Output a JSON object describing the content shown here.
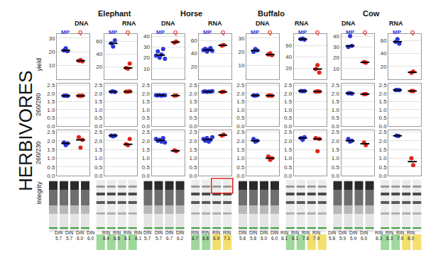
{
  "title": "HERBIVORES",
  "chart_data": {
    "type": "scatter",
    "marker": "circle",
    "grid": true,
    "tick_labels": "y",
    "series": [
      {
        "name": "MP",
        "color": "#2b35d8"
      },
      {
        "name": "Q",
        "color": "#e3241b"
      }
    ],
    "row_labels": [
      "yield",
      "260/280",
      "260/230",
      "Integrity"
    ],
    "animals": [
      {
        "name": "Elephant",
        "panels": [
          {
            "sample": "DNA",
            "rows": [
              {
                "ylim": [
                  0,
                  33
                ],
                "yticks": [
                  10,
                  20,
                  30
                ],
                "MP": [
                  21,
                  22.5,
                  20.5
                ],
                "Q": [
                  13.5,
                  14,
                  13
                ]
              },
              {
                "ylim": [
                  0,
                  2.6
                ],
                "yticks": [
                  {
                    "value": 0,
                    "label": "0.0"
                  },
                  0.5,
                  {
                    "value": 1,
                    "label": "1.0"
                  },
                  1.5,
                  {
                    "value": 2,
                    "label": "2.0"
                  },
                  2.5
                ],
                "MP": [
                  1.85,
                  1.86,
                  1.84
                ],
                "Q": [
                  1.85,
                  1.84,
                  1.86
                ]
              },
              {
                "ylim": [
                  0,
                  2.6
                ],
                "yticks": [
                  {
                    "value": 0,
                    "label": "0.0"
                  },
                  0.5,
                  {
                    "value": 1,
                    "label": "1.0"
                  },
                  1.5,
                  {
                    "value": 2,
                    "label": "2.0"
                  },
                  2.5
                ],
                "MP": [
                  1.9,
                  1.75,
                  1.85
                ],
                "Q": [
                  2.2,
                  1.6,
                  2.05
                ]
              }
            ],
            "integrity": {
              "metric": "DIN",
              "labels": [
                "5.7",
                "5.7",
                "6.0",
                "6.0"
              ]
            }
          },
          {
            "sample": "RNA",
            "rows": [
              {
                "ylim": [
                  0,
                  72
                ],
                "yticks": [
                  20,
                  40,
                  60
                ],
                "MP": [
                  57,
                  52,
                  62
                ],
                "Q": [
                  18,
                  17,
                  25
                ]
              },
              {
                "ylim": [
                  0,
                  2.6
                ],
                "yticks": [
                  {
                    "value": 0,
                    "label": "0.0"
                  },
                  0.5,
                  {
                    "value": 1,
                    "label": "1.0"
                  },
                  1.5,
                  {
                    "value": 2,
                    "label": "2.0"
                  },
                  2.5
                ],
                "MP": [
                  2.1,
                  2.12,
                  2.08
                ],
                "Q": [
                  2.1,
                  2.1,
                  2.12
                ]
              },
              {
                "ylim": [
                  0,
                  2.6
                ],
                "yticks": [
                  {
                    "value": 0,
                    "label": "0.0"
                  },
                  0.5,
                  {
                    "value": 1,
                    "label": "1.0"
                  },
                  1.5,
                  {
                    "value": 2,
                    "label": "2.0"
                  },
                  2.5
                ],
                "MP": [
                  2.3,
                  2.25,
                  2.3
                ],
                "Q": [
                  1.8,
                  1.75,
                  2.1
                ]
              }
            ],
            "integrity": {
              "metric": "RIN",
              "labels": [
                "8.4",
                "8.6",
                "8.1",
                "8.1"
              ],
              "colors": [
                "#9ed89a",
                "#9ed89a",
                "#9ed89a",
                "#9ed89a"
              ]
            }
          }
        ]
      },
      {
        "name": "Horse",
        "panels": [
          {
            "sample": "DNA",
            "rows": [
              {
                "ylim": [
                  0,
                  42
                ],
                "yticks": [
                  10,
                  20,
                  30,
                  40
                ],
                "MP": [
                  22,
                  26,
                  20,
                  23,
                  28,
                  19
                ],
                "Q": [
                  34,
                  35
                ]
              },
              {
                "ylim": [
                  0,
                  2.6
                ],
                "yticks": [
                  {
                    "value": 0,
                    "label": "0.0"
                  },
                  0.5,
                  {
                    "value": 1,
                    "label": "1.0"
                  },
                  1.5,
                  {
                    "value": 2,
                    "label": "2.0"
                  },
                  2.5
                ],
                "MP": [
                  1.88,
                  1.87,
                  1.9,
                  1.86,
                  1.88,
                  1.89
                ],
                "Q": [
                  1.86,
                  1.87
                ]
              },
              {
                "ylim": [
                  0,
                  2.6
                ],
                "yticks": [
                  {
                    "value": 0,
                    "label": "0.0"
                  },
                  0.5,
                  {
                    "value": 1,
                    "label": "1.0"
                  },
                  1.5,
                  {
                    "value": 2,
                    "label": "2.0"
                  },
                  2.5
                ],
                "MP": [
                  2.1,
                  2.0,
                  2.05,
                  1.95,
                  2.15,
                  1.9
                ],
                "Q": [
                  1.45,
                  1.4
                ]
              }
            ],
            "integrity": {
              "metric": "DIN",
              "labels": [
                "5.7",
                "5.7",
                "6.7",
                "6.2"
              ]
            }
          },
          {
            "sample": "RNA",
            "rows": [
              {
                "ylim": [
                  0,
                  70
                ],
                "yticks": [
                  20,
                  40,
                  60
                ],
                "MP": [
                  45,
                  47,
                  43,
                  46,
                  48,
                  44
                ],
                "Q": [
                  52,
                  53
                ]
              },
              {
                "ylim": [
                  0,
                  2.6
                ],
                "yticks": [
                  {
                    "value": 0,
                    "label": "0.0"
                  },
                  0.5,
                  {
                    "value": 1,
                    "label": "1.0"
                  },
                  1.5,
                  {
                    "value": 2,
                    "label": "2.0"
                  },
                  2.5
                ],
                "MP": [
                  2.1,
                  2.12,
                  2.09,
                  2.11,
                  2.1,
                  2.13
                ],
                "Q": [
                  2.08,
                  2.1
                ]
              },
              {
                "ylim": [
                  0,
                  2.6
                ],
                "yticks": [
                  {
                    "value": 0,
                    "label": "0.0"
                  },
                  0.5,
                  {
                    "value": 1,
                    "label": "1.0"
                  },
                  1.5,
                  {
                    "value": 2,
                    "label": "2.0"
                  },
                  2.5
                ],
                "MP": [
                  2.1,
                  2.0,
                  2.15,
                  1.95,
                  2.05,
                  2.2
                ],
                "Q": [
                  2.3,
                  2.35
                ]
              }
            ],
            "integrity": {
              "metric": "RIN",
              "labels": [
                "8.7",
                "8.8",
                "6.9",
                "7.1"
              ],
              "colors": [
                "#9ed89a",
                "#9ed89a",
                "#f3df6e",
                "#f3df6e"
              ],
              "highlight": "Q"
            }
          }
        ]
      },
      {
        "name": "Buffalo",
        "panels": [
          {
            "sample": "DNA",
            "rows": [
              {
                "ylim": [
                  0,
                  33
                ],
                "yticks": [
                  10,
                  20,
                  30
                ],
                "MP": [
                  20,
                  22,
                  21
                ],
                "Q": [
                  18,
                  19,
                  17.5
                ]
              },
              {
                "ylim": [
                  0,
                  2.6
                ],
                "yticks": [
                  {
                    "value": 0,
                    "label": "0.0"
                  },
                  0.5,
                  {
                    "value": 1,
                    "label": "1.0"
                  },
                  1.5,
                  {
                    "value": 2,
                    "label": "2.0"
                  },
                  2.5
                ],
                "MP": [
                  1.87,
                  1.86,
                  1.88
                ],
                "Q": [
                  1.86,
                  1.87,
                  1.85
                ]
              },
              {
                "ylim": [
                  0,
                  2.6
                ],
                "yticks": [
                  {
                    "value": 0,
                    "label": "0.0"
                  },
                  0.5,
                  {
                    "value": 1,
                    "label": "1.0"
                  },
                  1.5,
                  {
                    "value": 2,
                    "label": "2.0"
                  },
                  2.5
                ],
                "MP": [
                  2.1,
                  1.95,
                  2.0
                ],
                "Q": [
                  1.1,
                  0.9,
                  1.0
                ]
              }
            ],
            "integrity": {
              "metric": "DIN",
              "labels": [
                "5.8",
                "5.8",
                "6.0",
                "6.0"
              ]
            }
          },
          {
            "sample": "RNA",
            "rows": [
              {
                "ylim": [
                  0,
                  80
                ],
                "yticks": [
                  20,
                  40,
                  60
                ],
                "MP": [
                  71,
                  72,
                  70
                ],
                "Q": [
                  18,
                  25,
                  12
                ]
              },
              {
                "ylim": [
                  0,
                  2.6
                ],
                "yticks": [
                  {
                    "value": 0,
                    "label": "0.0"
                  },
                  0.5,
                  {
                    "value": 1,
                    "label": "1.0"
                  },
                  1.5,
                  {
                    "value": 2,
                    "label": "2.0"
                  },
                  2.5
                ],
                "MP": [
                  2.15,
                  2.13,
                  2.14
                ],
                "Q": [
                  2.1,
                  2.12,
                  2.11
                ]
              },
              {
                "ylim": [
                  0,
                  2.6
                ],
                "yticks": [
                  {
                    "value": 0,
                    "label": "0.0"
                  },
                  0.5,
                  {
                    "value": 1,
                    "label": "1.0"
                  },
                  1.5,
                  {
                    "value": 2,
                    "label": "2.0"
                  },
                  2.5
                ],
                "MP": [
                  2.15,
                  2.05,
                  2.2
                ],
                "Q": [
                  2.15,
                  1.4,
                  2.1
                ]
              }
            ],
            "integrity": {
              "metric": "RIN",
              "labels": [
                "8.1",
                "8.1",
                "7.8",
                "7.9"
              ],
              "colors": [
                "#9ed89a",
                "#9ed89a",
                "#f3df6e",
                "#f3df6e"
              ]
            }
          }
        ]
      },
      {
        "name": "Cow",
        "panels": [
          {
            "sample": "DNA",
            "rows": [
              {
                "ylim": [
                  0,
                  42
                ],
                "yticks": [
                  10,
                  20,
                  30,
                  40
                ],
                "MP": [
                  30,
                  40,
                  31
                ],
                "Q": [
                  16,
                  15.5
                ]
              },
              {
                "ylim": [
                  0,
                  2.6
                ],
                "yticks": [
                  {
                    "value": 0,
                    "label": "0.0"
                  },
                  0.5,
                  {
                    "value": 1,
                    "label": "1.0"
                  },
                  1.5,
                  {
                    "value": 2,
                    "label": "2.0"
                  },
                  2.5
                ],
                "MP": [
                  2.0,
                  2.02,
                  1.98
                ],
                "Q": [
                  1.95,
                  1.96
                ]
              },
              {
                "ylim": [
                  0,
                  2.6
                ],
                "yticks": [
                  {
                    "value": 0,
                    "label": "0.0"
                  },
                  0.5,
                  {
                    "value": 1,
                    "label": "1.0"
                  },
                  1.5,
                  {
                    "value": 2,
                    "label": "2.0"
                  },
                  2.5
                ],
                "MP": [
                  2.1,
                  1.95,
                  2.0
                ],
                "Q": [
                  1.9,
                  1.75
                ]
              }
            ],
            "integrity": {
              "metric": "DIN",
              "labels": [
                "5.8",
                "5.9",
                "5.9",
                "6.0"
              ]
            }
          },
          {
            "sample": "RNA",
            "rows": [
              {
                "ylim": [
                  0,
                  70
                ],
                "yticks": [
                  20,
                  40,
                  60
                ],
                "MP": [
                  58,
                  62,
                  55
                ],
                "Q": [
                  10,
                  12
                ]
              },
              {
                "ylim": [
                  0,
                  2.6
                ],
                "yticks": [
                  {
                    "value": 0,
                    "label": "0.0"
                  },
                  0.5,
                  {
                    "value": 1,
                    "label": "1.0"
                  },
                  1.5,
                  {
                    "value": 2,
                    "label": "2.0"
                  },
                  2.5
                ],
                "MP": [
                  2.2,
                  2.21,
                  2.2
                ],
                "Q": [
                  2.15,
                  2.14
                ]
              },
              {
                "ylim": [
                  0,
                  2.6
                ],
                "yticks": [
                  {
                    "value": 0,
                    "label": "0.0"
                  },
                  0.5,
                  {
                    "value": 1,
                    "label": "1.0"
                  },
                  1.5,
                  {
                    "value": 2,
                    "label": "2.0"
                  },
                  2.5
                ],
                "MP": [
                  2.3,
                  2.28
                ],
                "Q": [
                  1.0,
                  0.6
                ]
              }
            ],
            "integrity": {
              "metric": "RIN",
              "labels": [
                "8.3",
                "8.3",
                "7.9",
                "8.0"
              ],
              "colors": [
                "#9ed89a",
                "#9ed89a",
                "#f3df6e",
                "#f3df6e"
              ]
            }
          }
        ]
      }
    ]
  }
}
